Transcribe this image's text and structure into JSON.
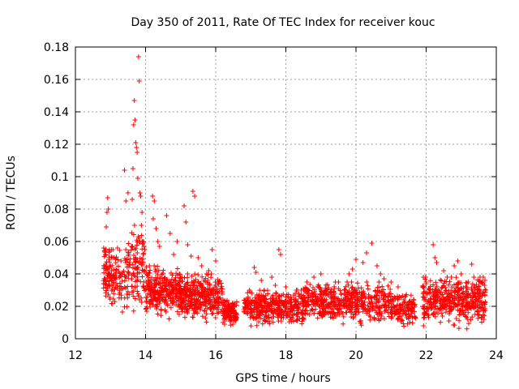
{
  "chart_data": {
    "type": "scatter",
    "title": "Day 350 of 2011, Rate Of TEC Index for receiver kouc",
    "xlabel": "GPS time / hours",
    "ylabel": "ROTI / TECUs",
    "xlim": [
      12,
      24
    ],
    "ylim": [
      0,
      0.18
    ],
    "x_ticks": [
      12,
      14,
      16,
      18,
      20,
      22,
      24
    ],
    "x_tick_labels": [
      "12",
      "14",
      "16",
      "18",
      "20",
      "22",
      "24"
    ],
    "y_ticks": [
      0,
      0.02,
      0.04,
      0.06,
      0.08,
      0.1,
      0.12,
      0.14,
      0.16,
      0.18
    ],
    "y_tick_labels": [
      "0",
      "0.02",
      "0.04",
      "0.06",
      "0.08",
      "0.1",
      "0.12",
      "0.14",
      "0.16",
      "0.18"
    ],
    "grid": true,
    "marker": "+",
    "series_color": "#ff0000",
    "density_segments": [
      {
        "x0": 12.8,
        "x1": 13.0,
        "n": 60,
        "lo": 0.012,
        "hi": 0.06
      },
      {
        "x0": 13.0,
        "x1": 13.5,
        "n": 90,
        "lo": 0.012,
        "hi": 0.055
      },
      {
        "x0": 13.5,
        "x1": 14.0,
        "n": 110,
        "lo": 0.012,
        "hi": 0.07
      },
      {
        "x0": 14.0,
        "x1": 15.0,
        "n": 280,
        "lo": 0.01,
        "hi": 0.045
      },
      {
        "x0": 15.0,
        "x1": 16.2,
        "n": 330,
        "lo": 0.008,
        "hi": 0.04
      },
      {
        "x0": 16.2,
        "x1": 16.6,
        "n": 120,
        "lo": 0.006,
        "hi": 0.024
      },
      {
        "x0": 16.8,
        "x1": 18.5,
        "n": 380,
        "lo": 0.005,
        "hi": 0.03
      },
      {
        "x0": 18.5,
        "x1": 21.0,
        "n": 520,
        "lo": 0.006,
        "hi": 0.035
      },
      {
        "x0": 21.0,
        "x1": 21.7,
        "n": 130,
        "lo": 0.006,
        "hi": 0.028
      },
      {
        "x0": 21.9,
        "x1": 23.7,
        "n": 430,
        "lo": 0.005,
        "hi": 0.038
      }
    ],
    "points": [
      [
        12.82,
        0.037
      ],
      [
        12.86,
        0.052
      ],
      [
        12.88,
        0.069
      ],
      [
        12.9,
        0.078
      ],
      [
        12.92,
        0.087
      ],
      [
        12.94,
        0.08
      ],
      [
        12.96,
        0.054
      ],
      [
        13.0,
        0.045
      ],
      [
        13.05,
        0.038
      ],
      [
        13.1,
        0.05
      ],
      [
        13.2,
        0.056
      ],
      [
        13.3,
        0.048
      ],
      [
        13.4,
        0.104
      ],
      [
        13.44,
        0.085
      ],
      [
        13.5,
        0.09
      ],
      [
        13.55,
        0.047
      ],
      [
        13.6,
        0.057
      ],
      [
        13.62,
        0.086
      ],
      [
        13.64,
        0.105
      ],
      [
        13.66,
        0.132
      ],
      [
        13.68,
        0.147
      ],
      [
        13.7,
        0.135
      ],
      [
        13.72,
        0.121
      ],
      [
        13.74,
        0.118
      ],
      [
        13.76,
        0.115
      ],
      [
        13.78,
        0.099
      ],
      [
        13.8,
        0.174
      ],
      [
        13.82,
        0.159
      ],
      [
        13.84,
        0.09
      ],
      [
        13.86,
        0.088
      ],
      [
        13.88,
        0.07
      ],
      [
        13.9,
        0.078
      ],
      [
        13.92,
        0.06
      ],
      [
        14.2,
        0.088
      ],
      [
        14.25,
        0.085
      ],
      [
        14.22,
        0.074
      ],
      [
        14.3,
        0.068
      ],
      [
        14.35,
        0.06
      ],
      [
        14.4,
        0.057
      ],
      [
        14.6,
        0.076
      ],
      [
        14.7,
        0.065
      ],
      [
        14.8,
        0.052
      ],
      [
        14.9,
        0.06
      ],
      [
        15.1,
        0.082
      ],
      [
        15.15,
        0.072
      ],
      [
        15.2,
        0.058
      ],
      [
        15.3,
        0.051
      ],
      [
        15.35,
        0.091
      ],
      [
        15.4,
        0.088
      ],
      [
        15.5,
        0.05
      ],
      [
        15.6,
        0.045
      ],
      [
        15.8,
        0.042
      ],
      [
        15.9,
        0.055
      ],
      [
        16.0,
        0.048
      ],
      [
        17.1,
        0.044
      ],
      [
        17.15,
        0.041
      ],
      [
        17.3,
        0.036
      ],
      [
        17.6,
        0.038
      ],
      [
        17.7,
        0.033
      ],
      [
        17.8,
        0.055
      ],
      [
        17.85,
        0.052
      ],
      [
        18.0,
        0.032
      ],
      [
        18.3,
        0.03
      ],
      [
        18.6,
        0.035
      ],
      [
        18.8,
        0.038
      ],
      [
        19.0,
        0.04
      ],
      [
        19.5,
        0.035
      ],
      [
        19.8,
        0.04
      ],
      [
        19.9,
        0.043
      ],
      [
        20.0,
        0.049
      ],
      [
        20.2,
        0.047
      ],
      [
        20.3,
        0.053
      ],
      [
        20.45,
        0.059
      ],
      [
        20.6,
        0.045
      ],
      [
        20.7,
        0.04
      ],
      [
        20.8,
        0.037
      ],
      [
        21.0,
        0.035
      ],
      [
        21.2,
        0.032
      ],
      [
        22.0,
        0.035
      ],
      [
        22.2,
        0.058
      ],
      [
        22.25,
        0.05
      ],
      [
        22.3,
        0.047
      ],
      [
        22.5,
        0.042
      ],
      [
        22.6,
        0.038
      ],
      [
        22.8,
        0.045
      ],
      [
        22.9,
        0.048
      ],
      [
        23.0,
        0.04
      ],
      [
        23.2,
        0.035
      ],
      [
        23.3,
        0.046
      ],
      [
        23.5,
        0.032
      ],
      [
        23.6,
        0.035
      ],
      [
        23.7,
        0.03
      ]
    ]
  }
}
